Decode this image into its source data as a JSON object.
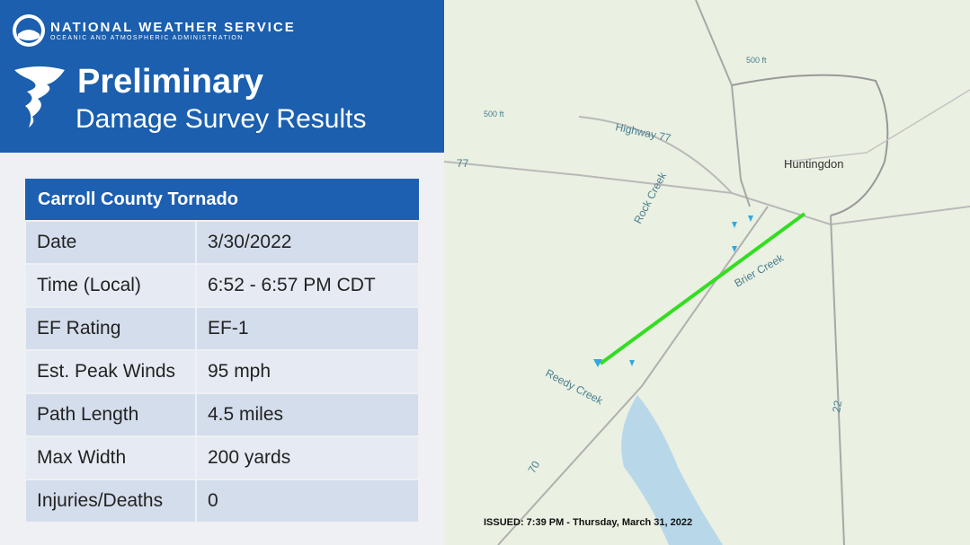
{
  "header": {
    "agency": "NATIONAL WEATHER SERVICE",
    "subagency": "OCEANIC AND ATMOSPHERIC ADMINISTRATION",
    "title": "Preliminary",
    "subtitle": "Damage Survey Results"
  },
  "table": {
    "title": "Carroll County Tornado",
    "rows": [
      [
        "Date",
        "3/30/2022"
      ],
      [
        "Time (Local)",
        "6:52 - 6:57 PM CDT"
      ],
      [
        "EF Rating",
        "EF-1"
      ],
      [
        "Est. Peak Winds",
        "95 mph"
      ],
      [
        "Path Length",
        "4.5 miles"
      ],
      [
        "Max Width",
        "200 yards"
      ],
      [
        "Injuries/Deaths",
        "0"
      ]
    ]
  },
  "map": {
    "labels": [
      "Highway 77",
      "77",
      "500 ft",
      "500 ft",
      "Huntingdon",
      "Rock Creek",
      "Brier Creek",
      "Reedy Creek",
      "70",
      "22"
    ]
  },
  "issued": "ISSUED: 7:39 PM - Thursday, March 31, 2022"
}
